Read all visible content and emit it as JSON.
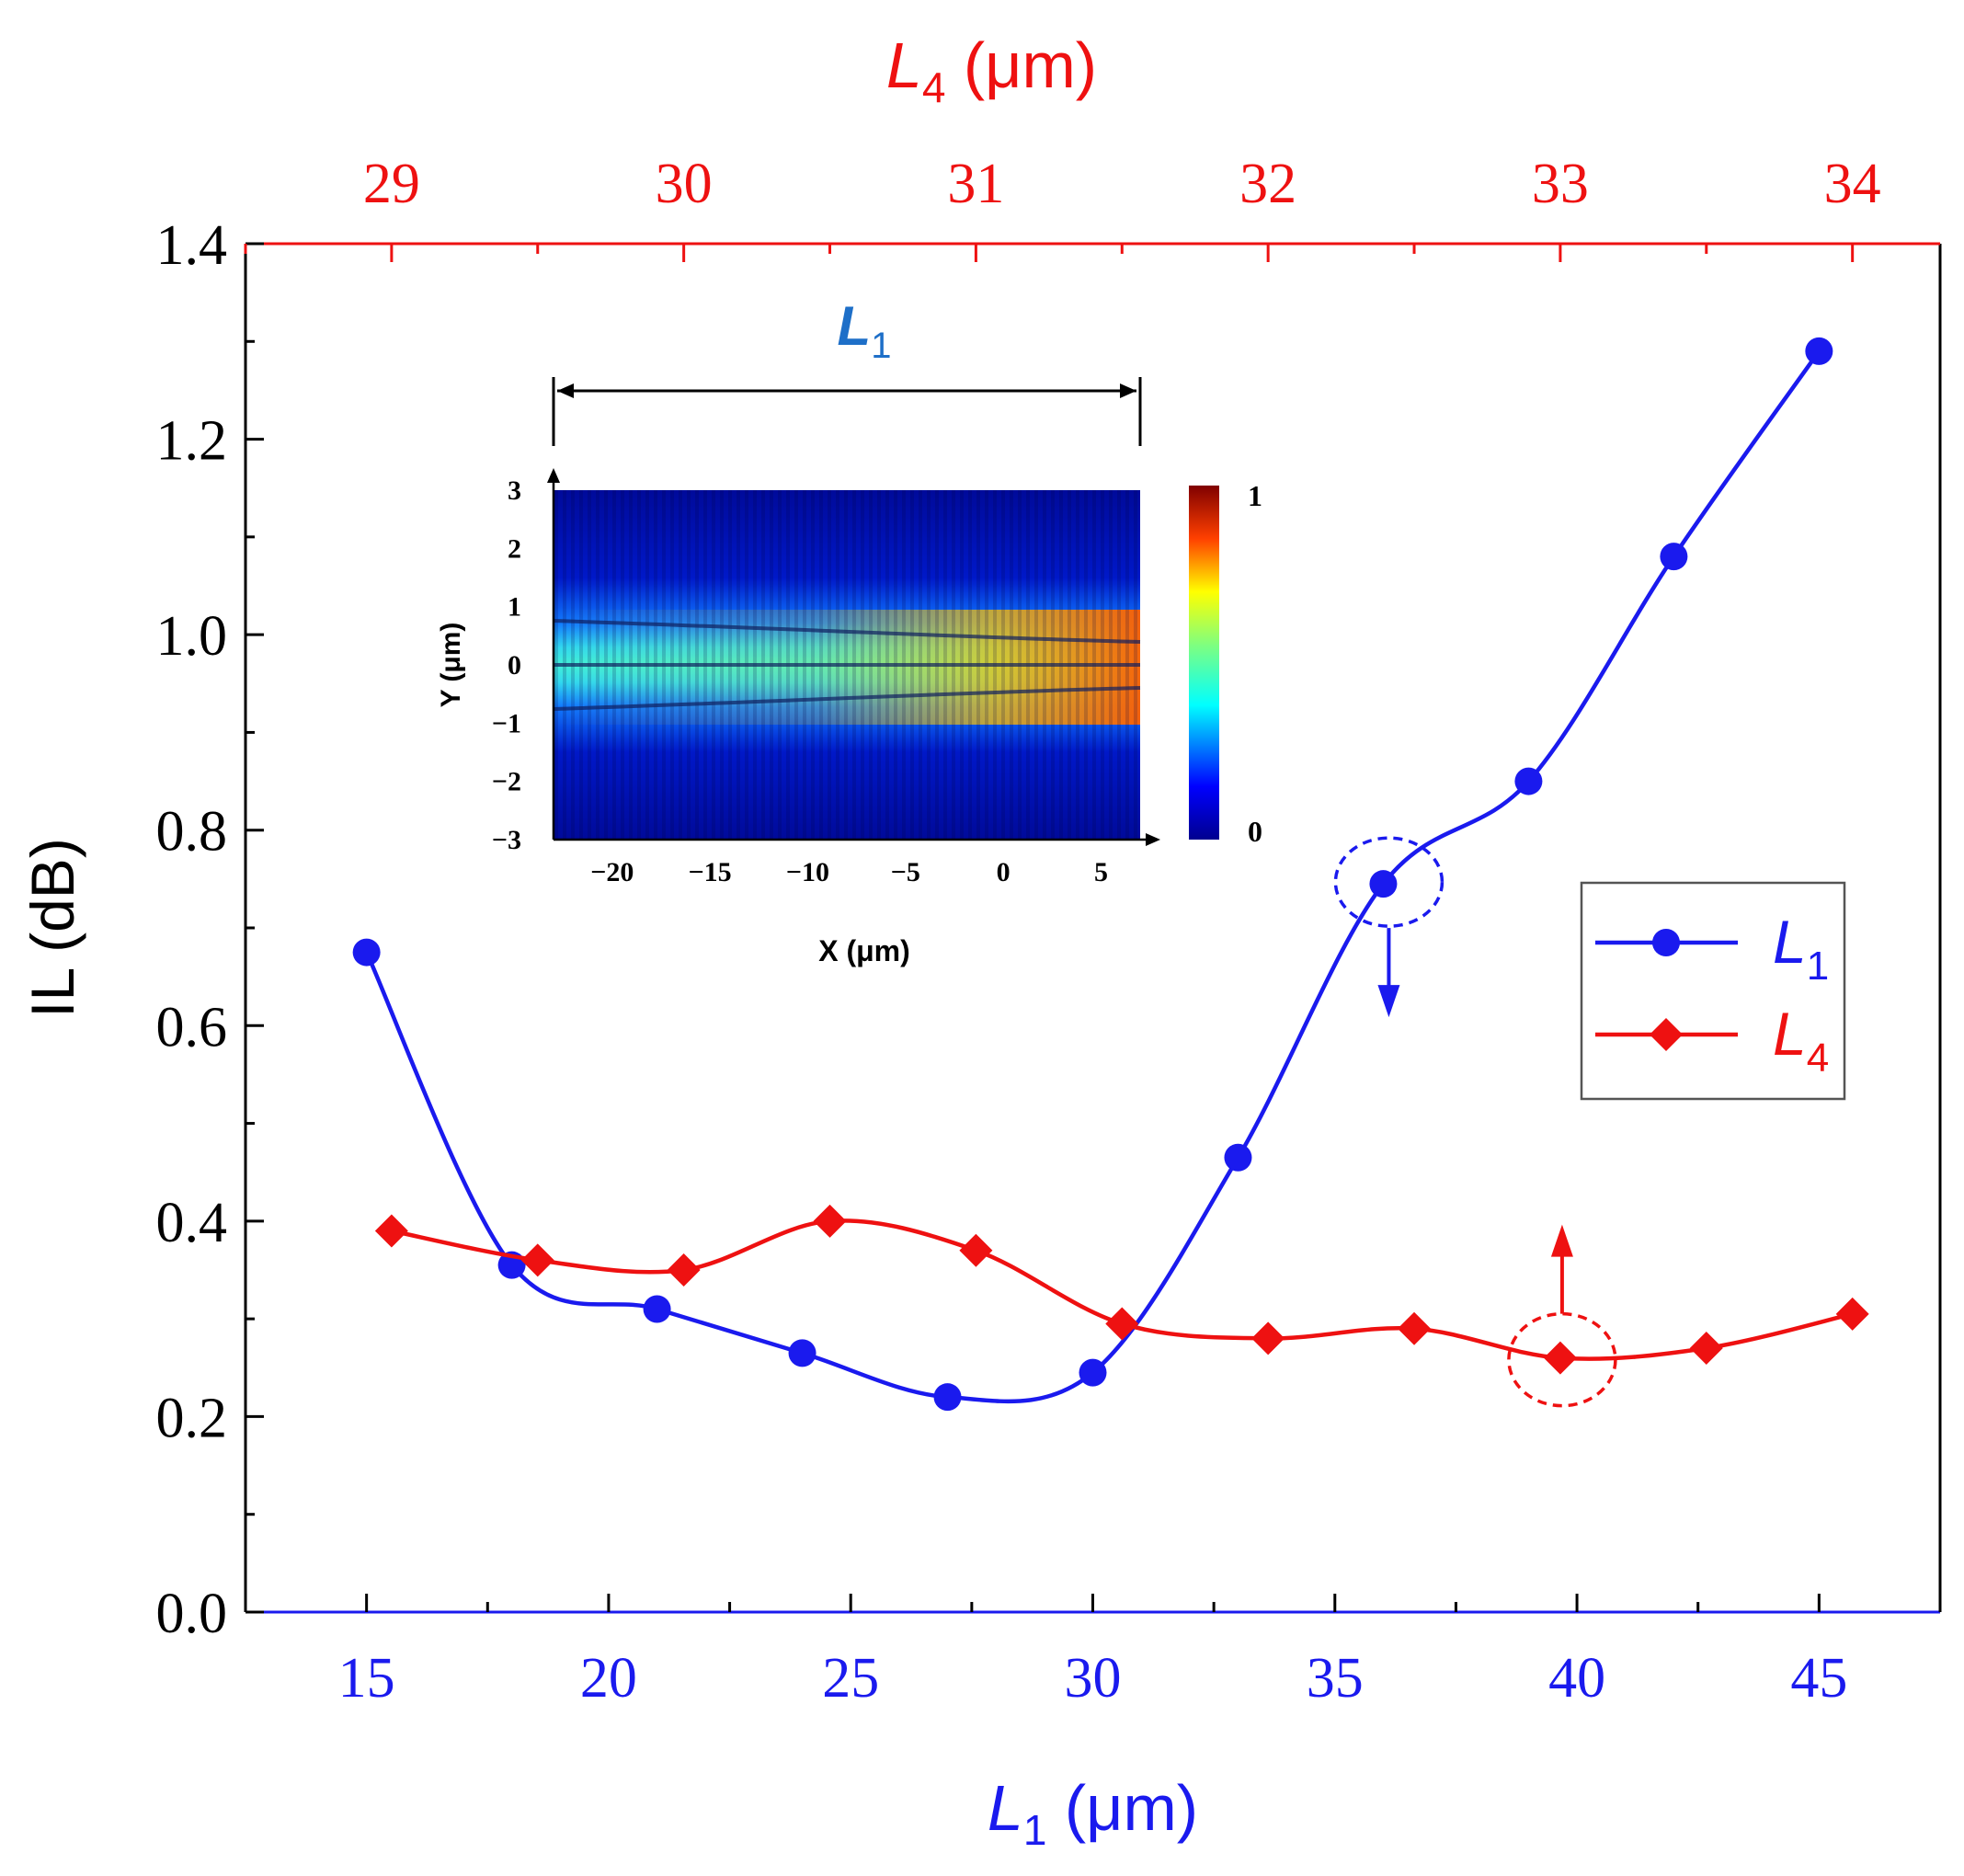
{
  "chart_data": {
    "type": "line",
    "ylabel": "IL (dB)",
    "ylim": [
      0,
      1.4
    ],
    "yticks": [
      "0.0",
      "0.2",
      "0.4",
      "0.6",
      "0.8",
      "1.0",
      "1.2",
      "1.4"
    ],
    "bottom_axis": {
      "label_main": "L",
      "label_sub": "1",
      "label_unit": " (μm)",
      "range": [
        12.5,
        47.5
      ],
      "ticks": [
        "15",
        "20",
        "25",
        "30",
        "35",
        "40",
        "45"
      ],
      "color": "#1a1aee"
    },
    "top_axis": {
      "label_main": "L",
      "label_sub": "4",
      "label_unit": " (μm)",
      "range": [
        28.5,
        34.3
      ],
      "ticks": [
        "29",
        "30",
        "31",
        "32",
        "33",
        "34"
      ],
      "color": "#ee1111"
    },
    "series": [
      {
        "name_main": "L",
        "name_sub": "1",
        "axis": "bottom",
        "marker": "circle",
        "color": "#1a1aee",
        "x": [
          15,
          18,
          21,
          24,
          27,
          30,
          33,
          36,
          39,
          42,
          45
        ],
        "y": [
          0.675,
          0.355,
          0.31,
          0.265,
          0.22,
          0.245,
          0.465,
          0.745,
          0.85,
          1.08,
          1.29
        ]
      },
      {
        "name_main": "L",
        "name_sub": "4",
        "axis": "top",
        "marker": "diamond",
        "color": "#ee1111",
        "x": [
          29,
          29.5,
          30,
          30.5,
          31,
          31.5,
          32,
          32.5,
          33,
          33.5,
          34
        ],
        "y": [
          0.39,
          0.36,
          0.35,
          0.4,
          0.37,
          0.295,
          0.28,
          0.29,
          0.26,
          0.27,
          0.305
        ]
      }
    ],
    "legend_position": "right-middle",
    "inset": {
      "label_main": "L",
      "label_sub": "1",
      "xlabel": "X (μm)",
      "ylabel": "Y (μm)",
      "xticks": [
        "−20",
        "−15",
        "−10",
        "−5",
        "0",
        "5"
      ],
      "yticks": [
        "3",
        "2",
        "1",
        "0",
        "−1",
        "−2",
        "−3"
      ],
      "colorbar_max": "1",
      "colorbar_min": "0"
    }
  }
}
